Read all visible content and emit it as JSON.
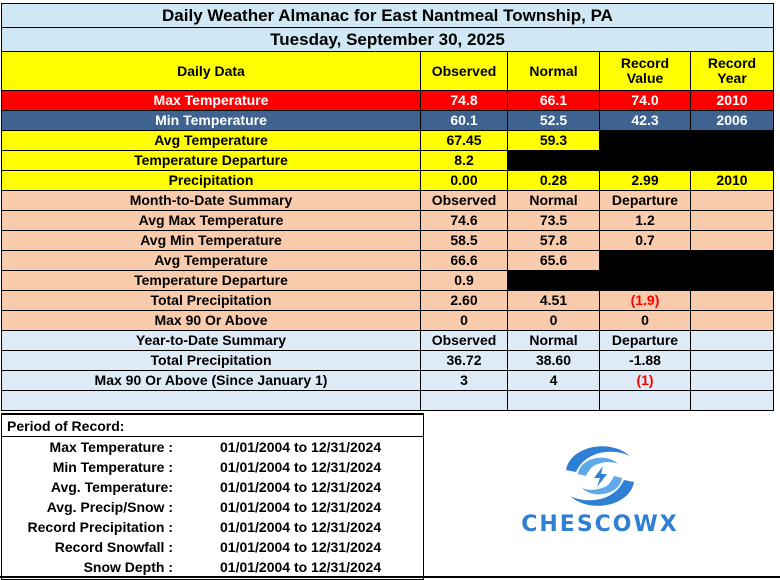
{
  "title": "Daily Weather Almanac for East Nantmeal Township, PA",
  "date": "Tuesday, September 30, 2025",
  "header": {
    "daily_data": "Daily Data",
    "observed": "Observed",
    "normal": "Normal",
    "record_value": "Record Value",
    "record_year": "Record Year"
  },
  "daily": {
    "max_temp": {
      "label": "Max Temperature",
      "observed": "74.8",
      "normal": "66.1",
      "record_value": "74.0",
      "record_year": "2010"
    },
    "min_temp": {
      "label": "Min Temperature",
      "observed": "60.1",
      "normal": "52.5",
      "record_value": "42.3",
      "record_year": "2006"
    },
    "avg_temp": {
      "label": "Avg Temperature",
      "observed": "67.45",
      "normal": "59.3"
    },
    "temp_departure": {
      "label": "Temperature Departure",
      "observed": "8.2"
    },
    "precip": {
      "label": "Precipitation",
      "observed": "0.00",
      "normal": "0.28",
      "record_value": "2.99",
      "record_year": "2010"
    }
  },
  "mtd": {
    "label": "Month-to-Date Summary",
    "col_observed": "Observed",
    "col_normal": "Normal",
    "col_departure": "Departure",
    "rows": [
      {
        "label": "Avg Max Temperature",
        "observed": "74.6",
        "normal": "73.5",
        "departure": "1.2"
      },
      {
        "label": "Avg Min Temperature",
        "observed": "58.5",
        "normal": "57.8",
        "departure": "0.7"
      },
      {
        "label": "Avg Temperature",
        "observed": "66.6",
        "normal": "65.6"
      },
      {
        "label": "Temperature Departure",
        "observed": "0.9"
      },
      {
        "label": "Total Precipitation",
        "observed": "2.60",
        "normal": "4.51",
        "departure": "(1.9)"
      },
      {
        "label": "Max 90 Or Above",
        "observed": "0",
        "normal": "0",
        "departure": "0"
      }
    ]
  },
  "ytd": {
    "label": "Year-to-Date Summary",
    "col_observed": "Observed",
    "col_normal": "Normal",
    "col_departure": "Departure",
    "rows": [
      {
        "label": "Total Precipitation",
        "observed": "36.72",
        "normal": "38.60",
        "departure": "-1.88"
      },
      {
        "label": "Max 90 Or Above (Since January 1)",
        "observed": "3",
        "normal": "4",
        "departure": "(1)"
      }
    ]
  },
  "period_of_record": {
    "title": "Period of Record:",
    "rows": [
      {
        "label": "Max Temperature :",
        "range": "01/01/2004 to 12/31/2024"
      },
      {
        "label": "Min Temperature :",
        "range": "01/01/2004 to 12/31/2024"
      },
      {
        "label": "Avg. Temperature:",
        "range": "01/01/2004 to 12/31/2024"
      },
      {
        "label": "Avg. Precip/Snow :",
        "range": "01/01/2004 to 12/31/2024"
      },
      {
        "label": "Record Precipitation :",
        "range": "01/01/2004 to 12/31/2024"
      },
      {
        "label": "Record Snowfall :",
        "range": "01/01/2004 to 12/31/2024"
      },
      {
        "label": "Snow Depth :",
        "range": "01/01/2004 to 12/31/2024"
      }
    ]
  },
  "logo": {
    "text": "CHESCOWX",
    "icon": "swirl-lightning-icon",
    "color": "#2f7fd4"
  },
  "colors": {
    "title_bg": "#cfe8f3",
    "yellow": "#ffff00",
    "red": "#ff0000",
    "blue": "#3e6391",
    "peach": "#f8cbad",
    "light_blue": "#deebf7"
  }
}
